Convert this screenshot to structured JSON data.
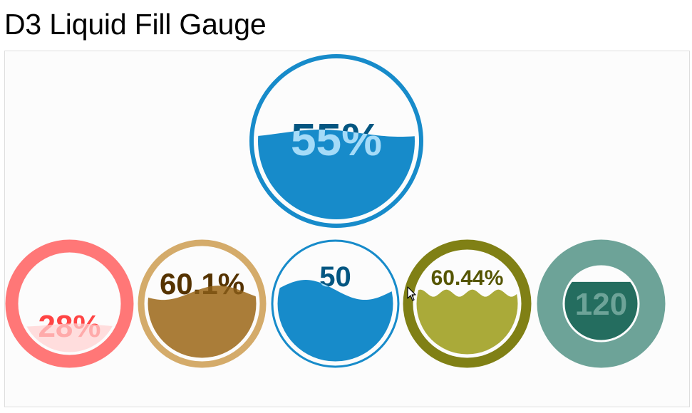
{
  "title": "D3 Liquid Fill Gauge",
  "gauges": [
    {
      "id": "gauge-main",
      "value": 55,
      "label": "55%",
      "min": 0,
      "max": 100,
      "circleColor": "#178BCA",
      "waveColor": "#178BCA",
      "textColor": "#045681",
      "waveTextColor": "#A4DBF8"
    },
    {
      "id": "gauge-red",
      "value": 28,
      "label": "28%",
      "min": 0,
      "max": 100,
      "circleColor": "#FF7777",
      "waveColor": "#FFDDDD",
      "textColor": "#FF4444",
      "waveTextColor": "#FFAAAA"
    },
    {
      "id": "gauge-brown",
      "value": 60.1,
      "label": "60.1%",
      "min": 0,
      "max": 100,
      "circleColor": "#D4AB6A",
      "waveColor": "#AA7D39",
      "textColor": "#553300",
      "waveTextColor": "#805615"
    },
    {
      "id": "gauge-blue",
      "value": 50,
      "label": "50",
      "min": 0,
      "max": 100,
      "circleColor": "#178BCA",
      "waveColor": "#178BCA",
      "textColor": "#045681",
      "waveTextColor": "#A4DBF8"
    },
    {
      "id": "gauge-olive",
      "value": 60.44,
      "label": "60.44%",
      "min": 0,
      "max": 100,
      "circleColor": "#808015",
      "waveColor": "#AAAA39",
      "textColor": "#555500",
      "waveTextColor": "#FFFFAA"
    },
    {
      "id": "gauge-teal",
      "value": 120,
      "label": "120",
      "min": 0,
      "max": 150,
      "circleColor": "#6DA398",
      "waveColor": "#246D5F",
      "textColor": "#0E5144",
      "waveTextColor": "#6DA398"
    }
  ]
}
